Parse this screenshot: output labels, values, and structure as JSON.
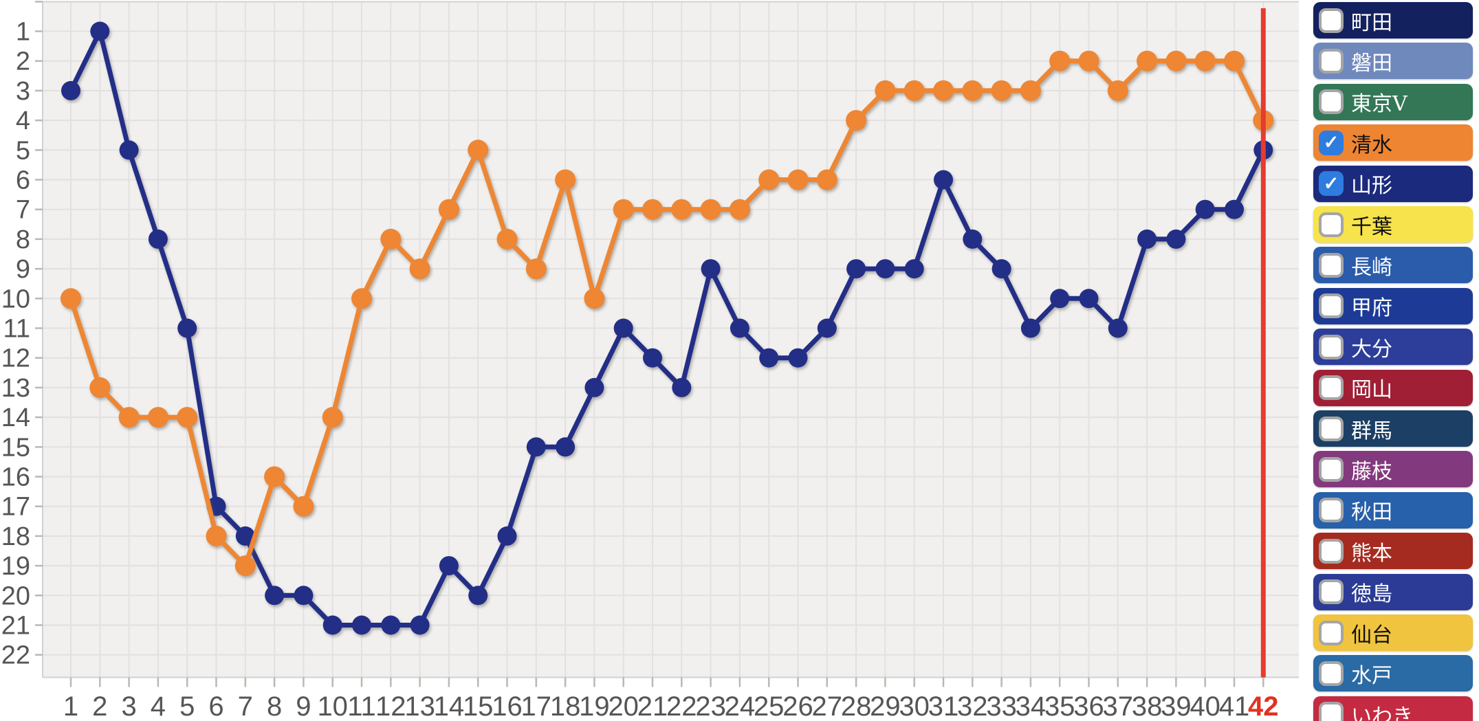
{
  "chart_data": {
    "type": "line",
    "title": "",
    "xlabel": "",
    "ylabel": "",
    "x": [
      1,
      2,
      3,
      4,
      5,
      6,
      7,
      8,
      9,
      10,
      11,
      12,
      13,
      14,
      15,
      16,
      17,
      18,
      19,
      20,
      21,
      22,
      23,
      24,
      25,
      26,
      27,
      28,
      29,
      30,
      31,
      32,
      33,
      34,
      35,
      36,
      37,
      38,
      39,
      40,
      41,
      42
    ],
    "y_ticks": [
      1,
      2,
      3,
      4,
      5,
      6,
      7,
      8,
      9,
      10,
      11,
      12,
      13,
      14,
      15,
      16,
      17,
      18,
      19,
      20,
      21,
      22
    ],
    "ylim": [
      1,
      22
    ],
    "y_inverted": true,
    "grid": true,
    "legend_position": "right",
    "current_round": 42,
    "series": [
      {
        "name": "清水",
        "color": "#ee8633",
        "marker_radius": 15,
        "values": [
          10,
          13,
          14,
          14,
          14,
          18,
          19,
          16,
          17,
          14,
          10,
          8,
          9,
          7,
          5,
          8,
          9,
          6,
          10,
          7,
          7,
          7,
          7,
          7,
          6,
          6,
          6,
          4,
          3,
          3,
          3,
          3,
          3,
          3,
          2,
          2,
          3,
          2,
          2,
          2,
          2,
          4
        ]
      },
      {
        "name": "山形",
        "color": "#232e87",
        "marker_radius": 14,
        "values": [
          3,
          1,
          5,
          8,
          11,
          17,
          18,
          20,
          20,
          21,
          21,
          21,
          21,
          19,
          20,
          18,
          15,
          15,
          13,
          11,
          12,
          13,
          9,
          11,
          12,
          12,
          11,
          9,
          9,
          9,
          6,
          8,
          9,
          11,
          10,
          10,
          11,
          8,
          8,
          7,
          7,
          5
        ]
      }
    ]
  },
  "axes": {
    "x_tick_color": "#555555",
    "y_tick_color": "#555555",
    "current_round_label": "42",
    "current_round_label_color": "#e03222"
  },
  "marker_line": {
    "color": "#e53b30",
    "x_round": 42
  },
  "colors": {
    "plot_bg": "#f1f0ee",
    "gridline": "#e2e1df",
    "plot_border": "#d2d1cf",
    "tick": "#b9b8b6",
    "checkbox_checked": "#2e7cdf",
    "checkbox_border": "#a5a5a5"
  },
  "legend": {
    "checked_icon": "✓",
    "teams": [
      {
        "name": "町田",
        "color": "#14215f",
        "text_color": "#ffffff",
        "checked": false
      },
      {
        "name": "磐田",
        "color": "#7089bd",
        "text_color": "#ffffff",
        "checked": false
      },
      {
        "name": "東京V",
        "color": "#337757",
        "text_color": "#ffffff",
        "checked": false
      },
      {
        "name": "清水",
        "color": "#ee8533",
        "text_color": "#111111",
        "checked": true
      },
      {
        "name": "山形",
        "color": "#1b2a7d",
        "text_color": "#ffffff",
        "checked": true
      },
      {
        "name": "千葉",
        "color": "#f7e34b",
        "text_color": "#111111",
        "checked": false
      },
      {
        "name": "長崎",
        "color": "#2b5cab",
        "text_color": "#ffffff",
        "checked": false
      },
      {
        "name": "甲府",
        "color": "#1d3b96",
        "text_color": "#ffffff",
        "checked": false
      },
      {
        "name": "大分",
        "color": "#2c3e9a",
        "text_color": "#ffffff",
        "checked": false
      },
      {
        "name": "岡山",
        "color": "#a01f35",
        "text_color": "#ffffff",
        "checked": false
      },
      {
        "name": "群馬",
        "color": "#1c3f66",
        "text_color": "#ffffff",
        "checked": false
      },
      {
        "name": "藤枝",
        "color": "#83397d",
        "text_color": "#ffffff",
        "checked": false
      },
      {
        "name": "秋田",
        "color": "#2760ab",
        "text_color": "#ffffff",
        "checked": false
      },
      {
        "name": "熊本",
        "color": "#a52b20",
        "text_color": "#ffffff",
        "checked": false
      },
      {
        "name": "徳島",
        "color": "#2b3b96",
        "text_color": "#ffffff",
        "checked": false
      },
      {
        "name": "仙台",
        "color": "#f0c43e",
        "text_color": "#111111",
        "checked": false
      },
      {
        "name": "水戸",
        "color": "#2a6aa5",
        "text_color": "#ffffff",
        "checked": false
      },
      {
        "name": "いわき",
        "color": "#c42a41",
        "text_color": "#ffffff",
        "checked": false
      }
    ]
  }
}
